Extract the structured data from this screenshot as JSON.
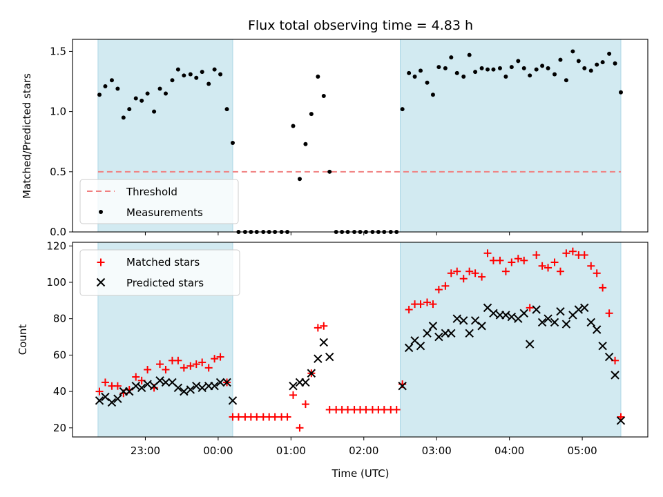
{
  "chart_data": [
    {
      "type": "scatter",
      "panel": "top",
      "title": "Flux total observing time = 4.83 h",
      "xlabel": "",
      "ylabel": "Matched/Predicted stars",
      "ylim": [
        0,
        1.6
      ],
      "yticks": [
        0.0,
        0.5,
        1.0,
        1.5
      ],
      "ytick_labels": [
        "0.0",
        "0.5",
        "1.0",
        "1.5"
      ],
      "xtick_labels": [],
      "x_range_hours": [
        22.0,
        29.9
      ],
      "shaded_intervals_hours": [
        [
          22.35,
          24.2
        ],
        [
          26.5,
          29.53
        ]
      ],
      "threshold": {
        "name": "Threshold",
        "value": 0.5,
        "color": "#f08080"
      },
      "series": [
        {
          "name": "Measurements",
          "color": "#000000",
          "marker": "dot",
          "x": [
            22.37,
            22.45,
            22.54,
            22.62,
            22.7,
            22.78,
            22.87,
            22.95,
            23.03,
            23.12,
            23.2,
            23.28,
            23.37,
            23.45,
            23.53,
            23.62,
            23.7,
            23.78,
            23.87,
            23.95,
            24.03,
            24.12,
            24.2,
            24.28,
            24.37,
            24.45,
            24.53,
            24.62,
            24.7,
            24.78,
            24.87,
            24.95,
            25.03,
            25.12,
            25.2,
            25.28,
            25.37,
            25.45,
            25.53,
            25.62,
            25.7,
            25.78,
            25.87,
            25.95,
            26.03,
            26.12,
            26.2,
            26.28,
            26.37,
            26.45,
            26.53,
            26.62,
            26.7,
            26.78,
            26.87,
            26.95,
            27.03,
            27.12,
            27.2,
            27.28,
            27.37,
            27.45,
            27.53,
            27.62,
            27.7,
            27.78,
            27.87,
            27.95,
            28.03,
            28.12,
            28.2,
            28.28,
            28.37,
            28.45,
            28.53,
            28.62,
            28.7,
            28.78,
            28.87,
            28.95,
            29.03,
            29.12,
            29.2,
            29.28,
            29.37,
            29.45,
            29.53
          ],
          "values": [
            1.14,
            1.21,
            1.26,
            1.19,
            0.95,
            1.02,
            1.11,
            1.09,
            1.15,
            1.0,
            1.19,
            1.15,
            1.26,
            1.35,
            1.3,
            1.31,
            1.28,
            1.33,
            1.23,
            1.35,
            1.31,
            1.02,
            0.74,
            0.0,
            0.0,
            0.0,
            0.0,
            0.0,
            0.0,
            0.0,
            0.0,
            0.0,
            0.88,
            0.44,
            0.73,
            0.98,
            1.29,
            1.13,
            0.5,
            0.0,
            0.0,
            0.0,
            0.0,
            0.0,
            0.0,
            0.0,
            0.0,
            0.0,
            0.0,
            0.0,
            1.02,
            1.32,
            1.29,
            1.34,
            1.24,
            1.14,
            1.37,
            1.36,
            1.45,
            1.32,
            1.29,
            1.47,
            1.33,
            1.36,
            1.35,
            1.35,
            1.36,
            1.29,
            1.37,
            1.42,
            1.36,
            1.3,
            1.35,
            1.38,
            1.36,
            1.31,
            1.43,
            1.26,
            1.5,
            1.42,
            1.36,
            1.34,
            1.39,
            1.41,
            1.48,
            1.4,
            1.16
          ]
        }
      ],
      "legend": {
        "position": "lower-left",
        "entries": [
          "Threshold",
          "Measurements"
        ]
      }
    },
    {
      "type": "scatter",
      "panel": "bottom",
      "title": "",
      "xlabel": "Time (UTC)",
      "ylabel": "Count",
      "ylim": [
        15,
        122
      ],
      "yticks": [
        20,
        40,
        60,
        80,
        100,
        120
      ],
      "ytick_labels": [
        "20",
        "40",
        "60",
        "80",
        "100",
        "120"
      ],
      "xticks_hours": [
        23,
        24,
        25,
        26,
        27,
        28,
        29
      ],
      "xtick_labels": [
        "23:00",
        "00:00",
        "01:00",
        "02:00",
        "03:00",
        "04:00",
        "05:00"
      ],
      "x_range_hours": [
        22.0,
        29.9
      ],
      "shaded_intervals_hours": [
        [
          22.35,
          24.2
        ],
        [
          26.5,
          29.53
        ]
      ],
      "series": [
        {
          "name": "Matched stars",
          "color": "#ff0000",
          "marker": "plus",
          "x": [
            22.37,
            22.45,
            22.54,
            22.62,
            22.7,
            22.78,
            22.87,
            22.95,
            23.03,
            23.12,
            23.2,
            23.28,
            23.37,
            23.45,
            23.53,
            23.62,
            23.7,
            23.78,
            23.87,
            23.95,
            24.03,
            24.12,
            24.2,
            24.28,
            24.37,
            24.45,
            24.53,
            24.62,
            24.7,
            24.78,
            24.87,
            24.95,
            25.03,
            25.12,
            25.2,
            25.28,
            25.37,
            25.45,
            25.53,
            25.62,
            25.7,
            25.78,
            25.87,
            25.95,
            26.03,
            26.12,
            26.2,
            26.28,
            26.37,
            26.45,
            26.53,
            26.62,
            26.7,
            26.78,
            26.87,
            26.95,
            27.03,
            27.12,
            27.2,
            27.28,
            27.37,
            27.45,
            27.53,
            27.62,
            27.7,
            27.78,
            27.87,
            27.95,
            28.03,
            28.12,
            28.2,
            28.28,
            28.37,
            28.45,
            28.53,
            28.62,
            28.7,
            28.78,
            28.87,
            28.95,
            29.03,
            29.12,
            29.2,
            29.28,
            29.37,
            29.45,
            29.53
          ],
          "values": [
            40,
            45,
            43,
            43,
            39,
            41,
            48,
            46,
            52,
            42,
            55,
            52,
            57,
            57,
            53,
            54,
            55,
            56,
            53,
            58,
            59,
            45,
            26,
            26,
            26,
            26,
            26,
            26,
            26,
            26,
            26,
            26,
            38,
            20,
            33,
            50,
            75,
            76,
            30,
            30,
            30,
            30,
            30,
            30,
            30,
            30,
            30,
            30,
            30,
            30,
            44,
            85,
            88,
            88,
            89,
            88,
            96,
            98,
            105,
            106,
            102,
            106,
            105,
            103,
            116,
            112,
            112,
            106,
            111,
            113,
            112,
            86,
            115,
            109,
            108,
            111,
            106,
            116,
            117,
            115,
            115,
            109,
            105,
            97,
            83,
            57,
            26
          ]
        },
        {
          "name": "Predicted stars",
          "color": "#000000",
          "marker": "x",
          "x": [
            22.37,
            22.45,
            22.54,
            22.62,
            22.7,
            22.78,
            22.87,
            22.95,
            23.03,
            23.12,
            23.2,
            23.28,
            23.37,
            23.45,
            23.53,
            23.62,
            23.7,
            23.78,
            23.87,
            23.95,
            24.03,
            24.12,
            24.2,
            25.03,
            25.12,
            25.2,
            25.28,
            25.37,
            25.45,
            25.53,
            26.53,
            26.62,
            26.7,
            26.78,
            26.87,
            26.95,
            27.03,
            27.12,
            27.2,
            27.28,
            27.37,
            27.45,
            27.53,
            27.62,
            27.7,
            27.78,
            27.87,
            27.95,
            28.03,
            28.12,
            28.2,
            28.28,
            28.37,
            28.45,
            28.53,
            28.62,
            28.7,
            28.78,
            28.87,
            28.95,
            29.03,
            29.12,
            29.2,
            29.28,
            29.37,
            29.45,
            29.53
          ],
          "values": [
            35,
            37,
            34,
            36,
            40,
            40,
            43,
            42,
            44,
            43,
            46,
            45,
            45,
            42,
            40,
            41,
            43,
            42,
            43,
            43,
            45,
            45,
            35,
            43,
            45,
            45,
            50,
            58,
            67,
            59,
            43,
            64,
            68,
            65,
            72,
            76,
            70,
            72,
            72,
            80,
            79,
            72,
            79,
            76,
            86,
            83,
            82,
            82,
            81,
            80,
            83,
            66,
            85,
            78,
            80,
            78,
            84,
            77,
            82,
            85,
            86,
            78,
            74,
            65,
            59,
            49,
            24
          ]
        }
      ],
      "legend": {
        "position": "upper-left",
        "entries": [
          "Matched stars",
          "Predicted stars"
        ]
      }
    }
  ],
  "colors": {
    "shade": "#add8e6",
    "matched": "#ff0000",
    "predicted": "#000000",
    "threshold": "#f08080",
    "measurements": "#000000"
  }
}
